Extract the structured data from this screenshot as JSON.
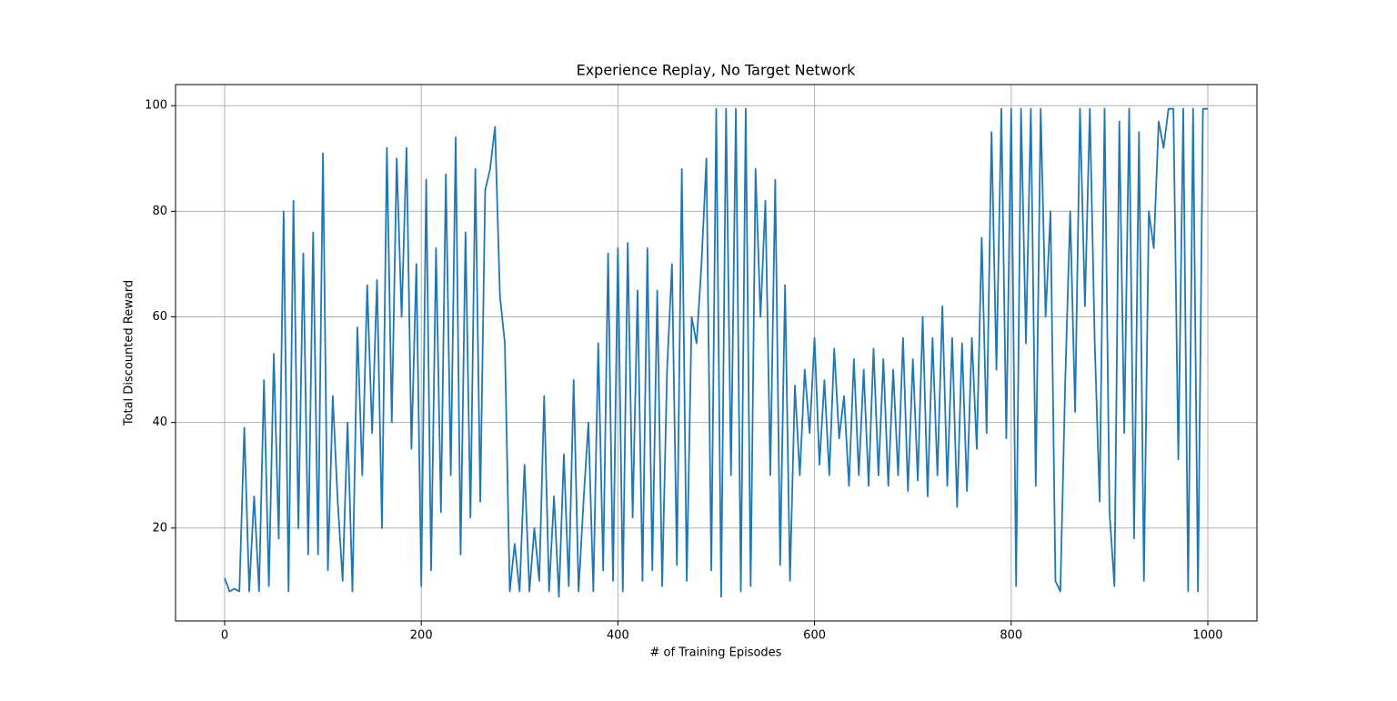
{
  "chart_data": {
    "type": "line",
    "title": "Experience Replay, No Target Network",
    "xlabel": "# of Training Episodes",
    "ylabel": "Total Discounted Reward",
    "x": [
      0,
      5,
      10,
      15,
      20,
      25,
      30,
      35,
      40,
      45,
      50,
      55,
      60,
      65,
      70,
      75,
      80,
      85,
      90,
      95,
      100,
      105,
      110,
      115,
      120,
      125,
      130,
      135,
      140,
      145,
      150,
      155,
      160,
      165,
      170,
      175,
      180,
      185,
      190,
      195,
      200,
      205,
      210,
      215,
      220,
      225,
      230,
      235,
      240,
      245,
      250,
      255,
      260,
      265,
      270,
      275,
      280,
      285,
      290,
      295,
      300,
      305,
      310,
      315,
      320,
      325,
      330,
      335,
      340,
      345,
      350,
      355,
      360,
      365,
      370,
      375,
      380,
      385,
      390,
      395,
      400,
      405,
      410,
      415,
      420,
      425,
      430,
      435,
      440,
      445,
      450,
      455,
      460,
      465,
      470,
      475,
      480,
      485,
      490,
      495,
      500,
      505,
      510,
      515,
      520,
      525,
      530,
      535,
      540,
      545,
      550,
      555,
      560,
      565,
      570,
      575,
      580,
      585,
      590,
      595,
      600,
      605,
      610,
      615,
      620,
      625,
      630,
      635,
      640,
      645,
      650,
      655,
      660,
      665,
      670,
      675,
      680,
      685,
      690,
      695,
      700,
      705,
      710,
      715,
      720,
      725,
      730,
      735,
      740,
      745,
      750,
      755,
      760,
      765,
      770,
      775,
      780,
      785,
      790,
      795,
      800,
      805,
      810,
      815,
      820,
      825,
      830,
      835,
      840,
      845,
      850,
      855,
      860,
      865,
      870,
      875,
      880,
      885,
      890,
      895,
      900,
      905,
      910,
      915,
      920,
      925,
      930,
      935,
      940,
      945,
      950,
      955,
      960,
      965,
      970,
      975,
      980,
      985,
      990,
      995,
      1000
    ],
    "series": [
      {
        "name": "reward",
        "color": "#1f77b4",
        "values": [
          10.5,
          8,
          8.5,
          8,
          39,
          8,
          26,
          8,
          48,
          9,
          53,
          18,
          80,
          8,
          82,
          20,
          72,
          15,
          76,
          15,
          91,
          12,
          45,
          25,
          10,
          40,
          8,
          58,
          30,
          66,
          38,
          67,
          20,
          92,
          40,
          90,
          60,
          92,
          35,
          70,
          9,
          86,
          12,
          73,
          23,
          87,
          30,
          94,
          15,
          76,
          22,
          88,
          25,
          84,
          88,
          96,
          64,
          55,
          8,
          17,
          8,
          32,
          8,
          20,
          10,
          45,
          8,
          26,
          7,
          34,
          9,
          48,
          8,
          25,
          40,
          8,
          55,
          12,
          72,
          10,
          73,
          8,
          74,
          22,
          65,
          10,
          73,
          12,
          65,
          9,
          50,
          70,
          13,
          88,
          10,
          60,
          55,
          70,
          90,
          12,
          99.4,
          7,
          99.4,
          30,
          99.4,
          8,
          99.4,
          9,
          88,
          60,
          82,
          30,
          86,
          13,
          66,
          10,
          47,
          30,
          50,
          38,
          56,
          32,
          48,
          30,
          54,
          37,
          45,
          28,
          52,
          30,
          50,
          28,
          54,
          30,
          52,
          28,
          50,
          30,
          56,
          27,
          52,
          29,
          60,
          26,
          56,
          30,
          62,
          28,
          56,
          24,
          55,
          27,
          56,
          35,
          75,
          38,
          95,
          50,
          99.4,
          37,
          99.4,
          9,
          99.4,
          55,
          99.4,
          28,
          99.4,
          60,
          80,
          10,
          8,
          48,
          80,
          42,
          99.4,
          62,
          99.4,
          55,
          25,
          99.4,
          23,
          9,
          97,
          38,
          99.4,
          18,
          95,
          10,
          80,
          73,
          97,
          92,
          99.4,
          99.4,
          33,
          99.4,
          8,
          99.4,
          8,
          99.4,
          99.4
        ]
      }
    ],
    "xlim": [
      -49.95,
      1049.95
    ],
    "ylim": [
      2.4,
      104
    ],
    "xticks": [
      0,
      200,
      400,
      600,
      800,
      1000
    ],
    "yticks": [
      20,
      40,
      60,
      80,
      100
    ],
    "grid": true
  }
}
